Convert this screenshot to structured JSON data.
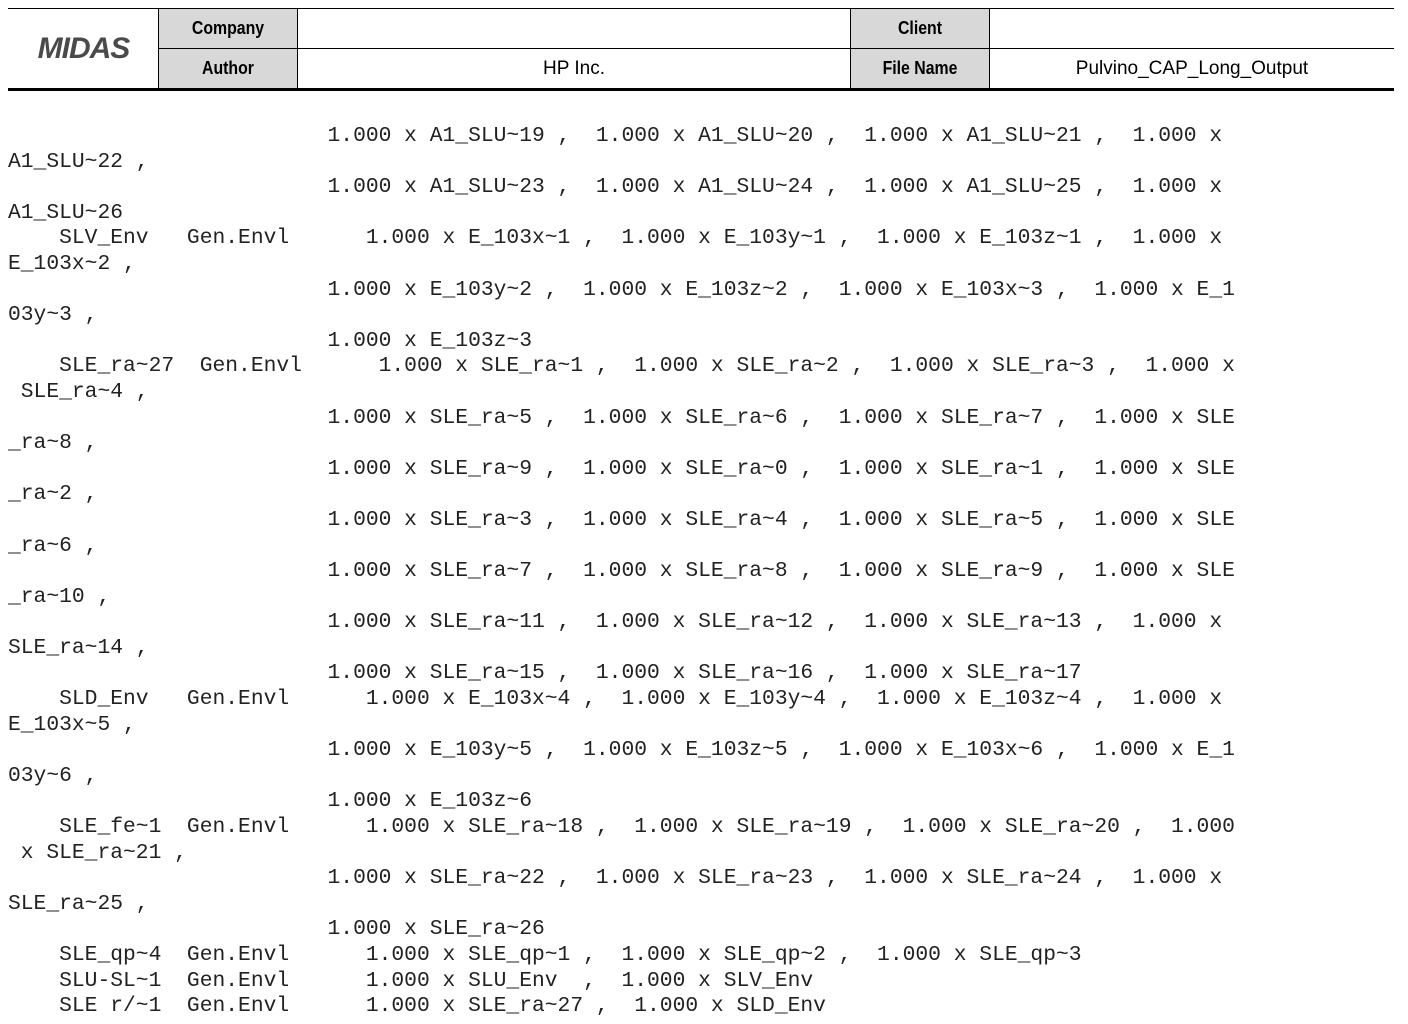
{
  "header": {
    "logo": "MIDAS",
    "company_label": "Company",
    "company_value": "",
    "client_label": "Client",
    "client_value": "",
    "author_label": "Author",
    "author_value": "HP Inc.",
    "filename_label": "File Name",
    "filename_value": "Pulvino_CAP_Long_Output"
  },
  "lines": [
    "                         1.000 x A1_SLU~19 ,  1.000 x A1_SLU~20 ,  1.000 x A1_SLU~21 ,  1.000 x",
    "A1_SLU~22 ,",
    "                         1.000 x A1_SLU~23 ,  1.000 x A1_SLU~24 ,  1.000 x A1_SLU~25 ,  1.000 x",
    "A1_SLU~26",
    "    SLV_Env   Gen.Envl      1.000 x E_103x~1 ,  1.000 x E_103y~1 ,  1.000 x E_103z~1 ,  1.000 x",
    "E_103x~2 ,",
    "                         1.000 x E_103y~2 ,  1.000 x E_103z~2 ,  1.000 x E_103x~3 ,  1.000 x E_1",
    "03y~3 ,",
    "                         1.000 x E_103z~3",
    "    SLE_ra~27  Gen.Envl      1.000 x SLE_ra~1 ,  1.000 x SLE_ra~2 ,  1.000 x SLE_ra~3 ,  1.000 x",
    " SLE_ra~4 ,",
    "                         1.000 x SLE_ra~5 ,  1.000 x SLE_ra~6 ,  1.000 x SLE_ra~7 ,  1.000 x SLE",
    "_ra~8 ,",
    "                         1.000 x SLE_ra~9 ,  1.000 x SLE_ra~0 ,  1.000 x SLE_ra~1 ,  1.000 x SLE",
    "_ra~2 ,",
    "                         1.000 x SLE_ra~3 ,  1.000 x SLE_ra~4 ,  1.000 x SLE_ra~5 ,  1.000 x SLE",
    "_ra~6 ,",
    "                         1.000 x SLE_ra~7 ,  1.000 x SLE_ra~8 ,  1.000 x SLE_ra~9 ,  1.000 x SLE",
    "_ra~10 ,",
    "                         1.000 x SLE_ra~11 ,  1.000 x SLE_ra~12 ,  1.000 x SLE_ra~13 ,  1.000 x",
    "SLE_ra~14 ,",
    "                         1.000 x SLE_ra~15 ,  1.000 x SLE_ra~16 ,  1.000 x SLE_ra~17",
    "    SLD_Env   Gen.Envl      1.000 x E_103x~4 ,  1.000 x E_103y~4 ,  1.000 x E_103z~4 ,  1.000 x",
    "E_103x~5 ,",
    "                         1.000 x E_103y~5 ,  1.000 x E_103z~5 ,  1.000 x E_103x~6 ,  1.000 x E_1",
    "03y~6 ,",
    "                         1.000 x E_103z~6",
    "    SLE_fe~1  Gen.Envl      1.000 x SLE_ra~18 ,  1.000 x SLE_ra~19 ,  1.000 x SLE_ra~20 ,  1.000",
    " x SLE_ra~21 ,",
    "                         1.000 x SLE_ra~22 ,  1.000 x SLE_ra~23 ,  1.000 x SLE_ra~24 ,  1.000 x",
    "SLE_ra~25 ,",
    "                         1.000 x SLE_ra~26",
    "    SLE_qp~4  Gen.Envl      1.000 x SLE_qp~1 ,  1.000 x SLE_qp~2 ,  1.000 x SLE_qp~3",
    "    SLU-SL~1  Gen.Envl      1.000 x SLU_Env  ,  1.000 x SLV_Env",
    "    SLE r/~1  Gen.Envl      1.000 x SLE_ra~27 ,  1.000 x SLD_Env"
  ]
}
